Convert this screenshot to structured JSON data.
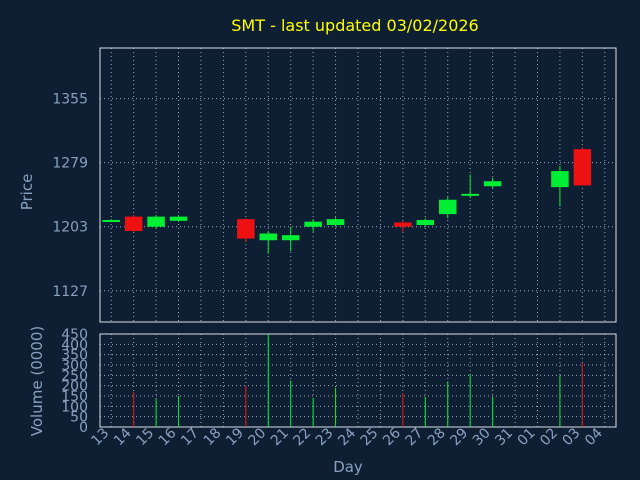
{
  "colors": {
    "background": "#0f1f33",
    "axis_text": "#8aa0bf",
    "title": "#ffff00",
    "grid": "#cfd8e6",
    "up": "#00ee33",
    "down": "#ee1111",
    "frame": "#d9dde4"
  },
  "chart_data": {
    "type": "candlestick",
    "title": "SMT - last updated 03/02/2026",
    "xlabel": "Day",
    "price_panel": {
      "ylabel": "Price",
      "ylim": [
        1090,
        1415
      ],
      "yticks": [
        1127,
        1203,
        1279,
        1355
      ],
      "grid": true
    },
    "volume_panel": {
      "ylabel": "Volume (0000)",
      "ylim": [
        0,
        450
      ],
      "yticks": [
        0,
        50,
        100,
        150,
        200,
        250,
        300,
        350,
        400,
        450
      ],
      "grid": true
    },
    "x_tick_labels": [
      "13",
      "14",
      "15",
      "16",
      "17",
      "18",
      "19",
      "20",
      "21",
      "22",
      "23",
      "24",
      "25",
      "26",
      "27",
      "28",
      "29",
      "30",
      "31",
      "01",
      "02",
      "03",
      "04"
    ],
    "candles": [
      {
        "slot": 0,
        "open": 1210,
        "high": 1212,
        "low": 1209,
        "close": 1211,
        "volume": 0
      },
      {
        "slot": 1,
        "open": 1215,
        "high": 1217,
        "low": 1197,
        "close": 1198,
        "volume": 170
      },
      {
        "slot": 2,
        "open": 1203,
        "high": 1217,
        "low": 1201,
        "close": 1215,
        "volume": 135
      },
      {
        "slot": 3,
        "open": 1210,
        "high": 1217,
        "low": 1209,
        "close": 1215,
        "volume": 150
      },
      {
        "slot": 6,
        "open": 1212,
        "high": 1213,
        "low": 1185,
        "close": 1189,
        "volume": 200
      },
      {
        "slot": 7,
        "open": 1187,
        "high": 1198,
        "low": 1171,
        "close": 1195,
        "volume": 450
      },
      {
        "slot": 8,
        "open": 1187,
        "high": 1203,
        "low": 1174,
        "close": 1193,
        "volume": 225
      },
      {
        "slot": 9,
        "open": 1203,
        "high": 1212,
        "low": 1197,
        "close": 1209,
        "volume": 140
      },
      {
        "slot": 10,
        "open": 1205,
        "high": 1214,
        "low": 1203,
        "close": 1212,
        "volume": 190
      },
      {
        "slot": 13,
        "open": 1208,
        "high": 1210,
        "low": 1197,
        "close": 1203,
        "volume": 165
      },
      {
        "slot": 14,
        "open": 1205,
        "high": 1213,
        "low": 1203,
        "close": 1211,
        "volume": 145
      },
      {
        "slot": 15,
        "open": 1218,
        "high": 1238,
        "low": 1213,
        "close": 1235,
        "volume": 220
      },
      {
        "slot": 16,
        "open": 1241,
        "high": 1265,
        "low": 1237,
        "close": 1242,
        "volume": 255
      },
      {
        "slot": 17,
        "open": 1251,
        "high": 1261,
        "low": 1249,
        "close": 1257,
        "volume": 145
      },
      {
        "slot": 20,
        "open": 1250,
        "high": 1275,
        "low": 1227,
        "close": 1269,
        "volume": 250
      },
      {
        "slot": 21,
        "open": 1295,
        "high": 1297,
        "low": 1252,
        "close": 1252,
        "volume": 310
      }
    ]
  }
}
